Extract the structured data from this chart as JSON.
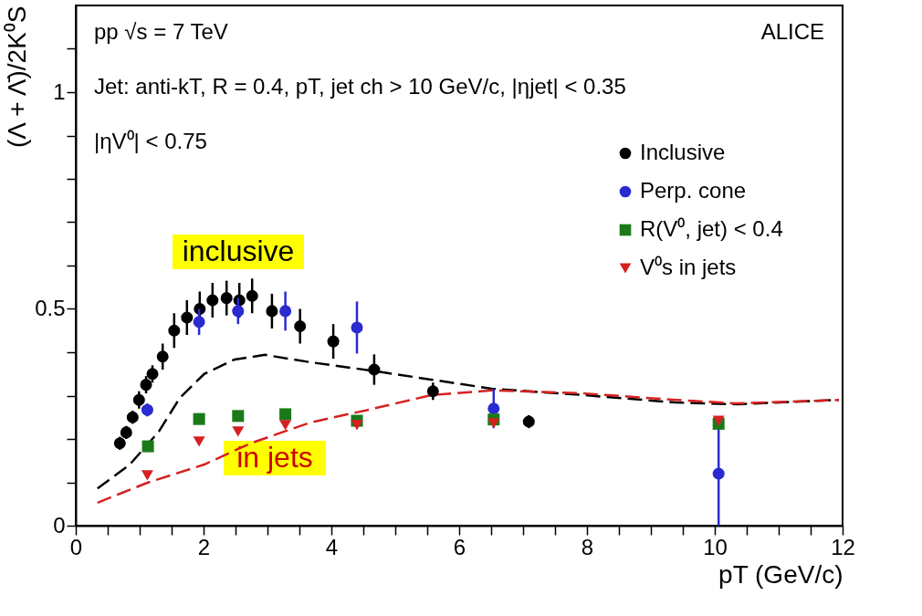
{
  "chart_data": {
    "type": "scatter",
    "xlabel": "pT (GeV/c)",
    "ylabel": "(Λ + Λ̄)/2K⁰S",
    "xlim": [
      0,
      12
    ],
    "ylim": [
      0,
      1.2
    ],
    "xticks": [
      0,
      {
        "value": 0.5,
        "label": null
      },
      {
        "value": 1,
        "label": null
      },
      {
        "value": 1.5,
        "label": null
      },
      2,
      {
        "value": 2.5,
        "label": null
      },
      {
        "value": 3,
        "label": null
      },
      {
        "value": 3.5,
        "label": null
      },
      4,
      {
        "value": 4.5,
        "label": null
      },
      {
        "value": 5,
        "label": null
      },
      {
        "value": 5.5,
        "label": null
      },
      6,
      {
        "value": 6.5,
        "label": null
      },
      {
        "value": 7,
        "label": null
      },
      {
        "value": 7.5,
        "label": null
      },
      8,
      {
        "value": 8.5,
        "label": null
      },
      {
        "value": 9,
        "label": null
      },
      {
        "value": 9.5,
        "label": null
      },
      10,
      {
        "value": 10.5,
        "label": null
      },
      {
        "value": 11,
        "label": null
      },
      {
        "value": 11.5,
        "label": null
      },
      12
    ],
    "yticks": [
      0,
      {
        "value": 0.1,
        "label": null
      },
      {
        "value": 0.2,
        "label": null
      },
      {
        "value": 0.3,
        "label": null
      },
      {
        "value": 0.4,
        "label": null
      },
      0.5,
      {
        "value": 0.6,
        "label": null
      },
      {
        "value": 0.7,
        "label": null
      },
      {
        "value": 0.8,
        "label": null
      },
      {
        "value": 0.9,
        "label": null
      },
      1,
      {
        "value": 1.1,
        "label": null
      }
    ],
    "grid": false,
    "legend": "top right",
    "annotations": [
      "pp √s = 7 TeV",
      "ALICE",
      "Jet: anti-kT, R = 0.4, pT, jet ch > 10 GeV/c, |ηjet| < 0.35",
      "|ηV⁰| < 0.75",
      "inclusive",
      "in jets"
    ],
    "series": [
      {
        "type": "line",
        "color": "#000000",
        "line_style": "dashed",
        "x": [
          0.34,
          0.84,
          1.3,
          1.63,
          2.01,
          2.48,
          2.96,
          3.67,
          4.61,
          5.56,
          6.51,
          7.97,
          9.39,
          10.34,
          11.94
        ],
        "values": [
          0.086,
          0.14,
          0.217,
          0.295,
          0.35,
          0.383,
          0.394,
          0.377,
          0.358,
          0.337,
          0.316,
          0.301,
          0.284,
          0.28,
          0.29
        ]
      },
      {
        "type": "line",
        "color": "#d62020",
        "line_style": "dashed",
        "x": [
          0.34,
          1.12,
          2.01,
          2.72,
          3.67,
          4.57,
          5.56,
          6.51,
          7.97,
          9.39,
          10.34,
          11.94
        ],
        "values": [
          0.053,
          0.099,
          0.141,
          0.189,
          0.238,
          0.267,
          0.301,
          0.312,
          0.305,
          0.29,
          0.282,
          0.29
        ]
      },
      {
        "name": "Inclusive",
        "color": "#000000",
        "marker": "circle",
        "x": [
          0.69,
          0.79,
          0.89,
          0.99,
          1.1,
          1.2,
          1.36,
          1.54,
          1.74,
          1.94,
          2.14,
          2.36,
          2.56,
          2.76,
          3.07,
          3.51,
          4.03,
          4.67,
          5.59,
          7.09
        ],
        "values": [
          0.19,
          0.215,
          0.25,
          0.29,
          0.325,
          0.35,
          0.39,
          0.45,
          0.48,
          0.5,
          0.52,
          0.525,
          0.52,
          0.53,
          0.495,
          0.46,
          0.425,
          0.36,
          0.31,
          0.24
        ],
        "errors": [
          0.015,
          0.015,
          0.015,
          0.02,
          0.02,
          0.02,
          0.03,
          0.04,
          0.04,
          0.04,
          0.04,
          0.04,
          0.04,
          0.04,
          0.04,
          0.04,
          0.04,
          0.035,
          0.02,
          0.015
        ]
      },
      {
        "name": "Perp. cone",
        "color": "#2a2ad0",
        "marker": "circle",
        "x": [
          1.12,
          1.93,
          2.54,
          3.28,
          4.4,
          6.54,
          10.06
        ],
        "values": [
          0.267,
          0.47,
          0.495,
          0.495,
          0.457,
          0.27,
          0.12
        ],
        "errors": [
          0.015,
          0.03,
          0.03,
          0.045,
          0.06,
          0.045,
          0.12
        ]
      },
      {
        "name": "R(V⁰, jet) < 0.4",
        "color": "#1a7a1a",
        "marker": "square",
        "x": [
          1.13,
          1.93,
          2.54,
          3.28,
          4.4,
          6.54,
          10.06
        ],
        "values": [
          0.183,
          0.246,
          0.253,
          0.257,
          0.242,
          0.245,
          0.235
        ]
      },
      {
        "name": "V⁰s in jets",
        "color": "#d62020",
        "marker": "triangle",
        "x": [
          1.12,
          1.93,
          2.54,
          3.28,
          4.4,
          6.54,
          10.06
        ],
        "values": [
          0.116,
          0.194,
          0.217,
          0.232,
          0.232,
          0.236,
          0.242
        ]
      }
    ]
  }
}
